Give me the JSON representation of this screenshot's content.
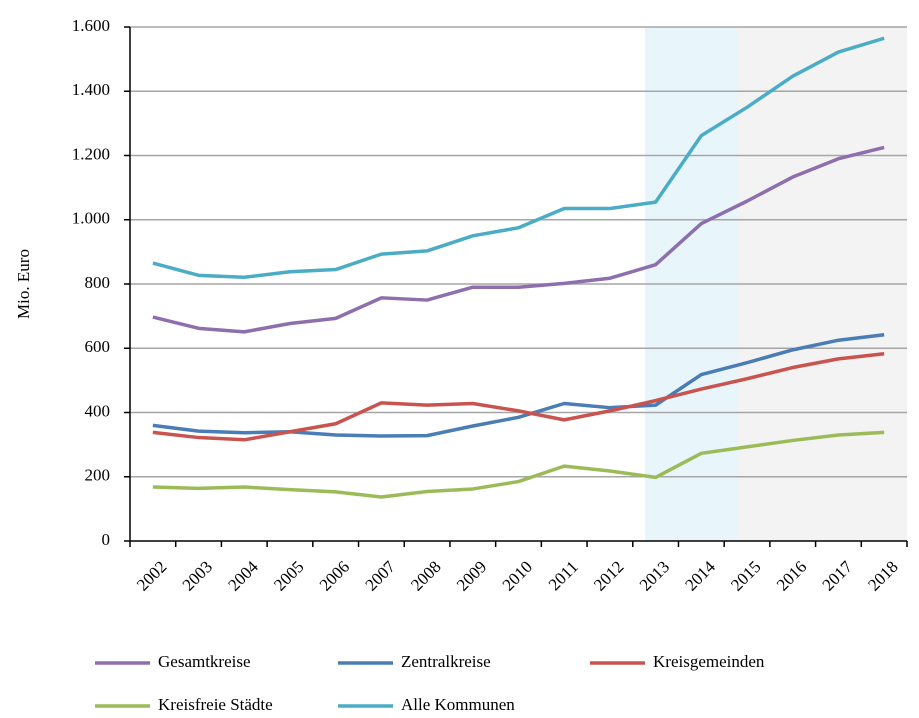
{
  "chart_data": {
    "type": "line",
    "y_label": "Mio. Euro",
    "categories": [
      "2002",
      "2003",
      "2004",
      "2005",
      "2006",
      "2007",
      "2008",
      "2009",
      "2010",
      "2011",
      "2012",
      "2013",
      "2014",
      "2015",
      "2016",
      "2017",
      "2018"
    ],
    "series": [
      {
        "name": "Gesamtkreise",
        "color": "#8e6fad",
        "values": [
          697,
          662,
          651,
          677,
          693,
          757,
          750,
          790,
          790,
          802,
          818,
          860,
          988,
          1058,
          1133,
          1190,
          1225
        ]
      },
      {
        "name": "Zentralkreise",
        "color": "#4a7db5",
        "values": [
          360,
          342,
          337,
          340,
          330,
          327,
          328,
          358,
          385,
          428,
          415,
          423,
          518,
          555,
          595,
          625,
          642
        ]
      },
      {
        "name": "Kreisgemeinden",
        "color": "#c9534f",
        "values": [
          338,
          322,
          315,
          340,
          365,
          430,
          423,
          428,
          405,
          377,
          405,
          437,
          473,
          505,
          540,
          567,
          583
        ]
      },
      {
        "name": "Kreisfreie Städte",
        "color": "#9bbb59",
        "values": [
          168,
          164,
          168,
          160,
          153,
          137,
          154,
          162,
          185,
          233,
          218,
          198,
          273,
          293,
          313,
          330,
          338
        ]
      },
      {
        "name": "Alle Kommunen",
        "color": "#4bacc6",
        "values": [
          865,
          827,
          821,
          838,
          845,
          893,
          903,
          950,
          975,
          1035,
          1035,
          1055,
          1262,
          1350,
          1447,
          1522,
          1565
        ]
      }
    ],
    "ylim": [
      0,
      1600
    ],
    "yticks": [
      0,
      200,
      400,
      600,
      800,
      {
        "value": 1000,
        "label": "1.000"
      },
      {
        "value": 1200,
        "label": "1.200"
      },
      {
        "value": 1400,
        "label": "1.400"
      },
      {
        "value": 1600,
        "label": "1.600"
      }
    ],
    "grid": true
  }
}
